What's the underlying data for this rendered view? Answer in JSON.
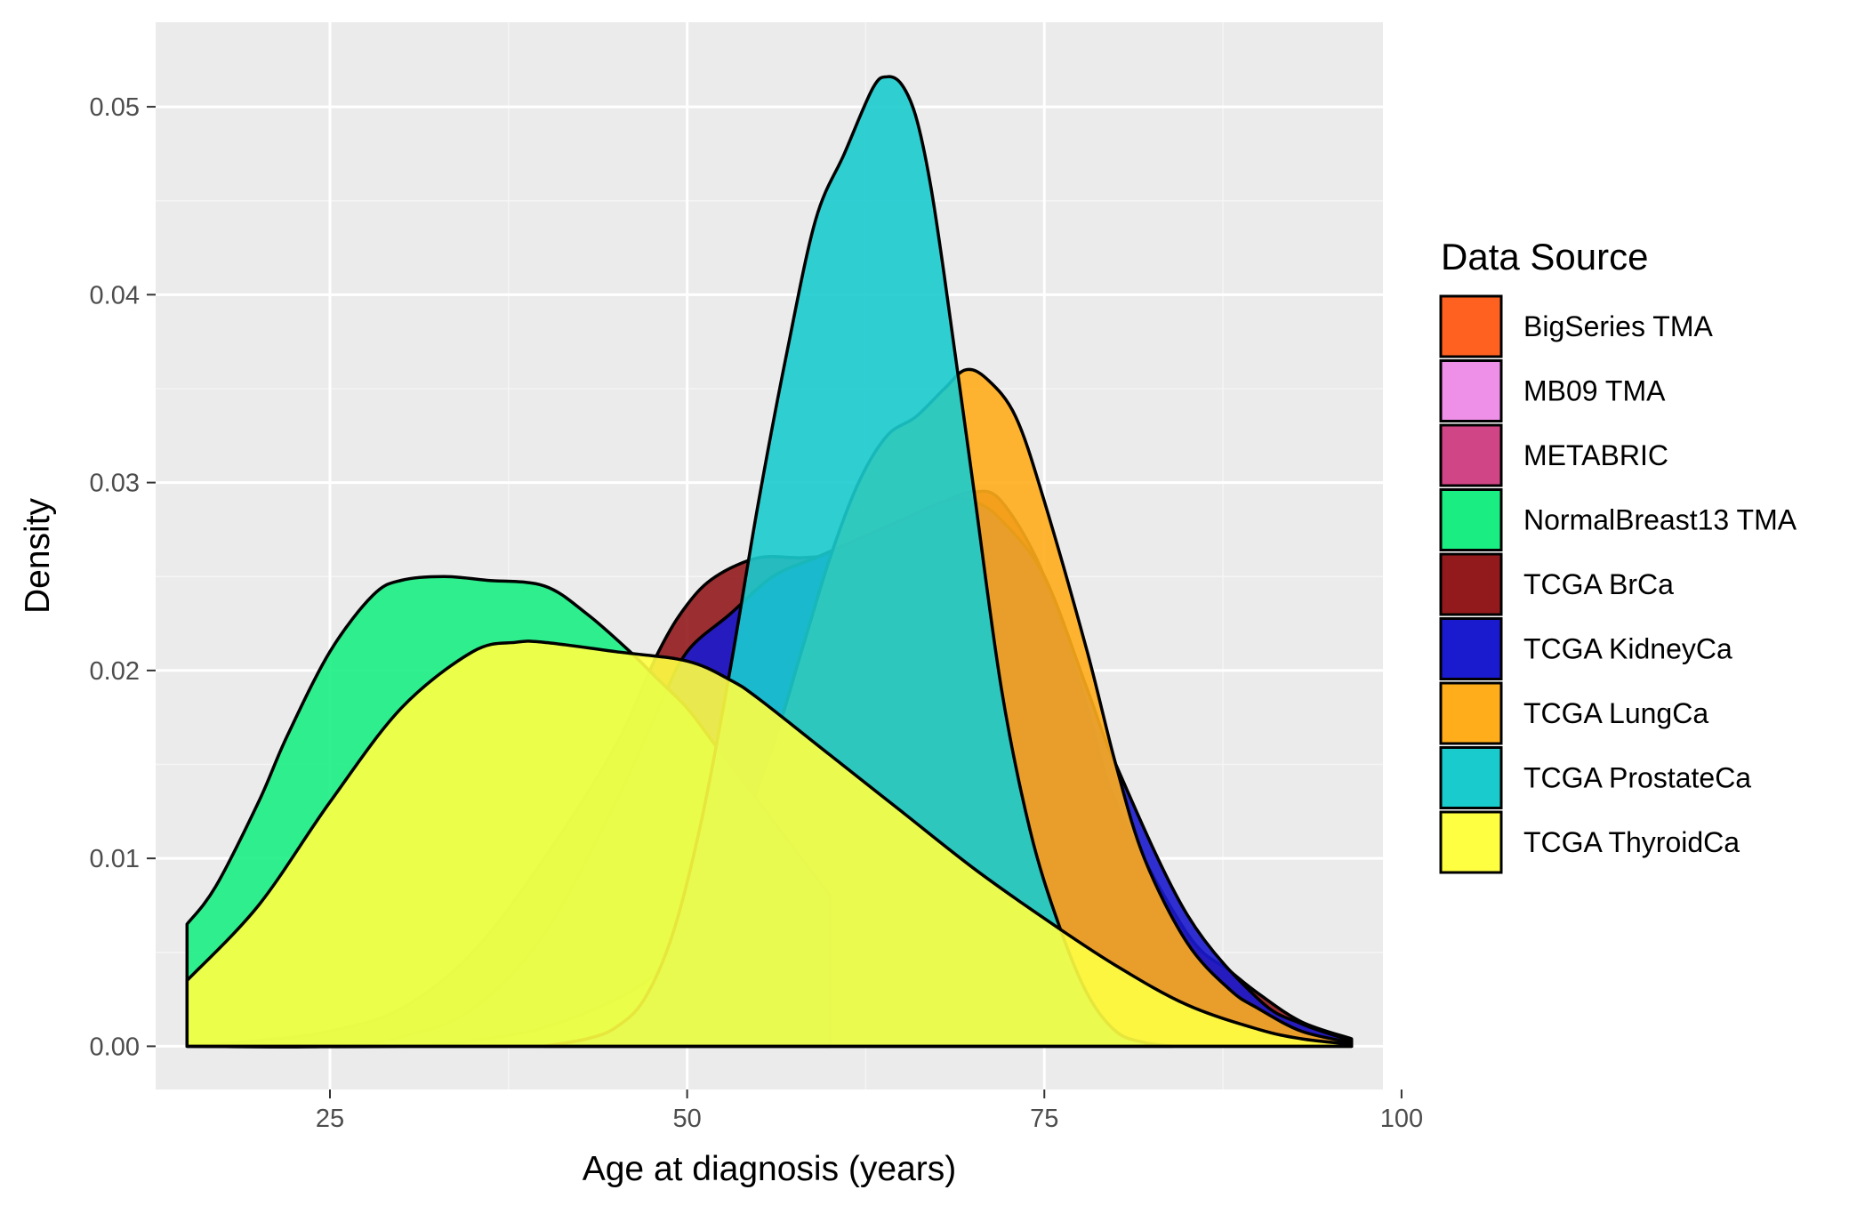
{
  "chart_data": {
    "type": "area",
    "subtype": "density",
    "xlabel": "Age at diagnosis (years)",
    "ylabel": "Density",
    "xlim": [
      12.8,
      98.7
    ],
    "ylim": [
      -0.0023,
      0.0545
    ],
    "x_ticks": [
      25,
      50,
      75,
      100
    ],
    "y_ticks": [
      0.0,
      0.01,
      0.02,
      0.03,
      0.04,
      0.05
    ],
    "x_tick_labels": [
      "25",
      "50",
      "75",
      "100"
    ],
    "y_tick_labels": [
      "0.00",
      "0.01",
      "0.02",
      "0.03",
      "0.04",
      "0.05"
    ],
    "grid": true,
    "legend": {
      "title": "Data Source",
      "placement": "right",
      "entries": [
        {
          "name": "BigSeries TMA",
          "color": "#FF6220"
        },
        {
          "name": "MB09 TMA",
          "color": "#EE8FE8"
        },
        {
          "name": "METABRIC",
          "color": "#D04585"
        },
        {
          "name": "NormalBreast13 TMA",
          "color": "#1AEE83"
        },
        {
          "name": "TCGA BrCa",
          "color": "#921A1C"
        },
        {
          "name": "TCGA KidneyCa",
          "color": "#1A1ACE"
        },
        {
          "name": "TCGA LungCa",
          "color": "#FFAD1B"
        },
        {
          "name": "TCGA ProstateCa",
          "color": "#1ACBCE"
        },
        {
          "name": "TCGA ThyroidCa",
          "color": "#FFFF42"
        }
      ]
    },
    "series": [
      {
        "name": "TCGA BrCa",
        "color": "#921A1C",
        "x": [
          15,
          20,
          25,
          30,
          35,
          40,
          45,
          48,
          50,
          52,
          55,
          58,
          60,
          62,
          65,
          68,
          70,
          72,
          75,
          78,
          80,
          85,
          88,
          90,
          93,
          96.5
        ],
        "y": [
          0.0,
          0.0003,
          0.0008,
          0.002,
          0.005,
          0.01,
          0.016,
          0.021,
          0.0235,
          0.025,
          0.026,
          0.026,
          0.0262,
          0.027,
          0.028,
          0.029,
          0.0295,
          0.029,
          0.025,
          0.018,
          0.013,
          0.006,
          0.004,
          0.0028,
          0.0013,
          0.0004
        ]
      },
      {
        "name": "TCGA KidneyCa",
        "color": "#1A1ACE",
        "x": [
          15,
          25,
          30,
          35,
          40,
          45,
          48,
          50,
          53,
          56,
          59,
          62,
          65,
          68,
          70,
          72,
          75,
          78,
          80,
          85,
          90,
          93,
          96.5
        ],
        "y": [
          0.0,
          0.0,
          0.0005,
          0.002,
          0.006,
          0.013,
          0.018,
          0.021,
          0.023,
          0.025,
          0.026,
          0.027,
          0.028,
          0.029,
          0.029,
          0.028,
          0.025,
          0.019,
          0.015,
          0.007,
          0.0025,
          0.0012,
          0.0003
        ]
      },
      {
        "name": "TCGA LungCa",
        "color": "#FFAD1B",
        "x": [
          15,
          30,
          35,
          40,
          45,
          48,
          50,
          53,
          56,
          58,
          60,
          62,
          64,
          66,
          68,
          69.5,
          71,
          73,
          75,
          78,
          80,
          82,
          85,
          88,
          90,
          93,
          96.5
        ],
        "y": [
          0.0,
          0.0,
          0.0003,
          0.001,
          0.0025,
          0.004,
          0.006,
          0.01,
          0.016,
          0.021,
          0.026,
          0.03,
          0.0325,
          0.0335,
          0.035,
          0.036,
          0.0355,
          0.0335,
          0.029,
          0.021,
          0.015,
          0.01,
          0.0055,
          0.003,
          0.002,
          0.0008,
          0.0002
        ]
      },
      {
        "name": "NormalBreast13 TMA",
        "color": "#1AEE83",
        "x": [
          15,
          17,
          20,
          22,
          25,
          28,
          30,
          33,
          36,
          40,
          43,
          46,
          48,
          50,
          52,
          55,
          58,
          60
        ],
        "y": [
          0.0065,
          0.0085,
          0.013,
          0.0165,
          0.021,
          0.024,
          0.0248,
          0.025,
          0.0248,
          0.0245,
          0.023,
          0.021,
          0.0195,
          0.018,
          0.016,
          0.013,
          0.01,
          0.008
        ]
      },
      {
        "name": "TCGA ProstateCa",
        "color": "#1ACBCE",
        "x": [
          40,
          43,
          45,
          47,
          49,
          51,
          53,
          55,
          57,
          59,
          61,
          63,
          64,
          65,
          66,
          67,
          68,
          70,
          72,
          74,
          76,
          78,
          80,
          82,
          84
        ],
        "y": [
          0.0,
          0.0004,
          0.001,
          0.0025,
          0.006,
          0.012,
          0.02,
          0.029,
          0.037,
          0.044,
          0.0475,
          0.051,
          0.0516,
          0.0512,
          0.0495,
          0.046,
          0.041,
          0.03,
          0.019,
          0.0115,
          0.0065,
          0.0028,
          0.0008,
          0.0002,
          0.0
        ]
      },
      {
        "name": "TCGA ThyroidCa",
        "color": "#FFFF42",
        "x": [
          15,
          20,
          25,
          30,
          35,
          38,
          40,
          45,
          50,
          53,
          55,
          60,
          65,
          70,
          75,
          80,
          85,
          90,
          93,
          96.5
        ],
        "y": [
          0.0035,
          0.0075,
          0.013,
          0.018,
          0.021,
          0.0215,
          0.0215,
          0.021,
          0.0205,
          0.0195,
          0.0185,
          0.0155,
          0.0125,
          0.0095,
          0.0068,
          0.0043,
          0.0022,
          0.0009,
          0.0004,
          0.0001
        ]
      }
    ]
  }
}
